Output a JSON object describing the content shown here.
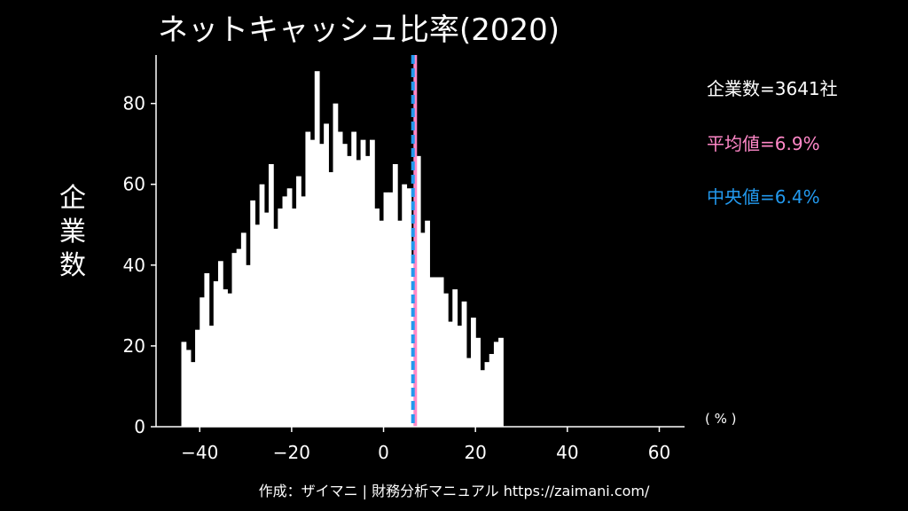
{
  "title": "ネットキャッシュ比率(2020)",
  "ylabel": [
    "企",
    "業",
    "数"
  ],
  "annotations": {
    "count": "企業数=3641社",
    "mean": "平均値=6.9%",
    "median": "中央値=6.4%"
  },
  "unit_label": "( % )",
  "credit": "作成：ザイマニ | 財務分析マニュアル https://zaimani.com/",
  "colors": {
    "background": "#000000",
    "bar": "#ffffff",
    "mean_line": "#ff88c8",
    "median_line": "#2299ee"
  },
  "chart_data": {
    "type": "bar",
    "title": "ネットキャッシュ比率(2020)",
    "xlabel": "( % )",
    "ylabel": "企業数",
    "xlim": [
      -49.5,
      65.5
    ],
    "ylim": [
      0,
      92
    ],
    "xticks": [
      -40,
      -20,
      0,
      20,
      40,
      60
    ],
    "xtick_labels": [
      "−40",
      "−20",
      "0",
      "20",
      "40",
      "60"
    ],
    "yticks": [
      0,
      20,
      40,
      60,
      80
    ],
    "bin_width": 1,
    "bin_start": -44,
    "values": [
      21,
      19,
      16,
      24,
      32,
      38,
      25,
      36,
      41,
      34,
      33,
      43,
      44,
      48,
      40,
      56,
      50,
      60,
      53,
      65,
      49,
      54,
      57,
      59,
      54,
      62,
      57,
      73,
      71,
      88,
      70,
      75,
      63,
      80,
      73,
      70,
      67,
      73,
      66,
      71,
      67,
      71,
      54,
      51,
      58,
      58,
      65,
      51,
      60,
      59,
      41,
      67,
      48,
      51,
      37,
      37,
      37,
      33,
      26,
      34,
      25,
      31,
      17,
      27,
      22,
      14,
      16,
      18,
      21,
      22
    ],
    "mean": 6.9,
    "median": 6.4,
    "grid": false
  }
}
